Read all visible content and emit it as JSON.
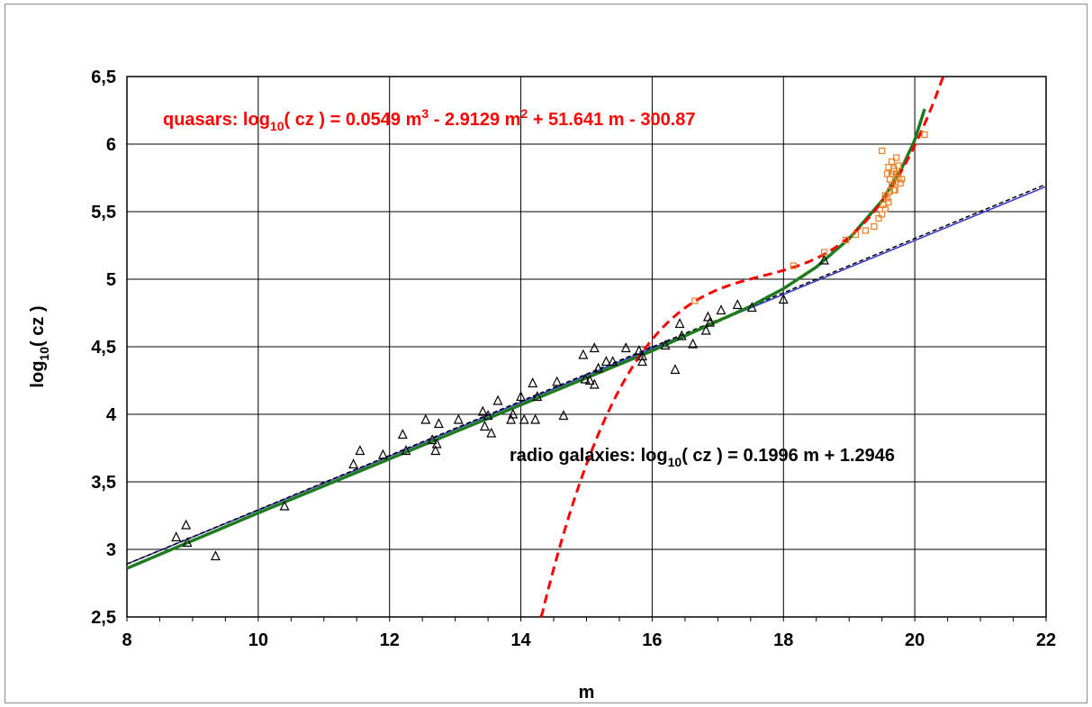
{
  "chart_data": {
    "type": "scatter",
    "title": "",
    "xlabel": "m",
    "ylabel_main": "log",
    "ylabel_sub": "10",
    "ylabel_tail": "( cz )",
    "xlim": [
      8,
      22
    ],
    "ylim": [
      2.5,
      6.5
    ],
    "x_ticks": [
      8,
      10,
      12,
      14,
      16,
      18,
      20,
      22
    ],
    "x_tick_labels": [
      "8",
      "10",
      "12",
      "14",
      "16",
      "18",
      "20",
      "22"
    ],
    "y_ticks": [
      2.5,
      3,
      3.5,
      4,
      4.5,
      5,
      5.5,
      6,
      6.5
    ],
    "y_tick_labels": [
      "2,5",
      "3",
      "3,5",
      "4",
      "4,5",
      "5",
      "5,5",
      "6",
      "6,5"
    ],
    "grid": true,
    "colors": {
      "radio_points": "#000000",
      "quasar_points": "#e67e22",
      "quasar_fit": "#ff0000",
      "radio_fit": "#3333cc",
      "linear_dashed": "#000000",
      "green_fit": "#1e7b1e"
    },
    "annotations": {
      "quasar_eq": {
        "prefix": "quasars: log",
        "sub": "10",
        "part1": "( cz ) = 0.0549 m",
        "sup1": "3",
        "part2": " - 2.9129 m",
        "sup2": "2",
        "part3": " + 51.641 m - 300.87"
      },
      "radio_eq": {
        "prefix": "radio galaxies: log",
        "sub": "10",
        "part1": "( cz ) = 0.1996 m + 1.2946"
      }
    },
    "series": [
      {
        "marker": "triangle",
        "points": [
          [
            8.75,
            3.09
          ],
          [
            8.9,
            3.18
          ],
          [
            8.92,
            3.05
          ],
          [
            9.35,
            2.95
          ],
          [
            10.4,
            3.32
          ],
          [
            11.45,
            3.63
          ],
          [
            11.55,
            3.73
          ],
          [
            11.9,
            3.7
          ],
          [
            12.2,
            3.85
          ],
          [
            12.25,
            3.73
          ],
          [
            12.55,
            3.96
          ],
          [
            12.65,
            3.81
          ],
          [
            12.7,
            3.73
          ],
          [
            12.72,
            3.78
          ],
          [
            12.75,
            3.93
          ],
          [
            13.05,
            3.96
          ],
          [
            13.42,
            4.02
          ],
          [
            13.45,
            3.91
          ],
          [
            13.5,
            3.99
          ],
          [
            13.55,
            3.86
          ],
          [
            13.65,
            4.1
          ],
          [
            13.85,
            3.96
          ],
          [
            13.88,
            4.0
          ],
          [
            14.0,
            4.13
          ],
          [
            14.05,
            3.96
          ],
          [
            14.18,
            4.23
          ],
          [
            14.22,
            3.96
          ],
          [
            14.25,
            4.13
          ],
          [
            14.55,
            4.24
          ],
          [
            14.65,
            3.99
          ],
          [
            14.95,
            4.44
          ],
          [
            14.98,
            4.26
          ],
          [
            15.05,
            4.25
          ],
          [
            15.12,
            4.49
          ],
          [
            15.12,
            4.22
          ],
          [
            15.18,
            4.34
          ],
          [
            15.3,
            4.39
          ],
          [
            15.4,
            4.39
          ],
          [
            15.6,
            4.49
          ],
          [
            15.8,
            4.47
          ],
          [
            15.85,
            4.39
          ],
          [
            15.85,
            4.43
          ],
          [
            16.2,
            4.51
          ],
          [
            16.35,
            4.33
          ],
          [
            16.42,
            4.67
          ],
          [
            16.45,
            4.58
          ],
          [
            16.62,
            4.52
          ],
          [
            16.82,
            4.62
          ],
          [
            16.85,
            4.72
          ],
          [
            16.88,
            4.68
          ],
          [
            17.05,
            4.77
          ],
          [
            17.3,
            4.81
          ],
          [
            17.52,
            4.79
          ],
          [
            18.0,
            4.85
          ],
          [
            18.62,
            5.14
          ]
        ]
      },
      {
        "marker": "square",
        "points": [
          [
            16.65,
            4.84
          ],
          [
            18.15,
            5.1
          ],
          [
            18.62,
            5.2
          ],
          [
            18.95,
            5.29
          ],
          [
            19.1,
            5.33
          ],
          [
            19.25,
            5.36
          ],
          [
            19.38,
            5.39
          ],
          [
            19.45,
            5.45
          ],
          [
            19.5,
            5.48
          ],
          [
            19.52,
            5.55
          ],
          [
            19.55,
            5.52
          ],
          [
            19.58,
            5.6
          ],
          [
            19.6,
            5.57
          ],
          [
            19.62,
            5.65
          ],
          [
            19.65,
            5.7
          ],
          [
            19.68,
            5.66
          ],
          [
            19.7,
            5.72
          ],
          [
            19.72,
            5.78
          ],
          [
            19.75,
            5.75
          ],
          [
            19.78,
            5.71
          ],
          [
            19.5,
            5.95
          ],
          [
            19.58,
            5.78
          ],
          [
            19.6,
            5.83
          ],
          [
            19.65,
            5.87
          ],
          [
            19.68,
            5.82
          ],
          [
            19.72,
            5.9
          ],
          [
            19.75,
            5.84
          ],
          [
            19.8,
            5.74
          ],
          [
            19.55,
            5.62
          ],
          [
            19.62,
            5.74
          ],
          [
            19.7,
            5.66
          ],
          [
            19.68,
            5.8
          ],
          [
            19.65,
            5.78
          ],
          [
            20.15,
            6.07
          ]
        ]
      }
    ],
    "fits": [
      {
        "kind": "cubic",
        "coeffs": [
          0.0549,
          -2.9129,
          51.641,
          -300.87
        ],
        "x_range": [
          14.3,
          20.5
        ],
        "style": "dashed"
      },
      {
        "kind": "linear",
        "slope": 0.1996,
        "intercept": 1.2946,
        "x_range": [
          8,
          22
        ],
        "style": "solid"
      },
      {
        "kind": "linear",
        "slope": 0.2008,
        "intercept": 1.2853,
        "x_range": [
          8,
          22
        ],
        "style": "dashed"
      },
      {
        "kind": "piecewise",
        "anchors": [
          [
            8,
            2.86
          ],
          [
            10,
            3.27
          ],
          [
            12,
            3.67
          ],
          [
            14,
            4.07
          ],
          [
            15,
            4.27
          ],
          [
            16,
            4.47
          ],
          [
            17,
            4.69
          ],
          [
            17.5,
            4.8
          ],
          [
            18,
            4.93
          ],
          [
            18.5,
            5.09
          ],
          [
            19,
            5.3
          ],
          [
            19.5,
            5.58
          ],
          [
            19.8,
            5.82
          ],
          [
            20.0,
            6.03
          ],
          [
            20.15,
            6.26
          ]
        ],
        "style": "solid"
      }
    ]
  }
}
